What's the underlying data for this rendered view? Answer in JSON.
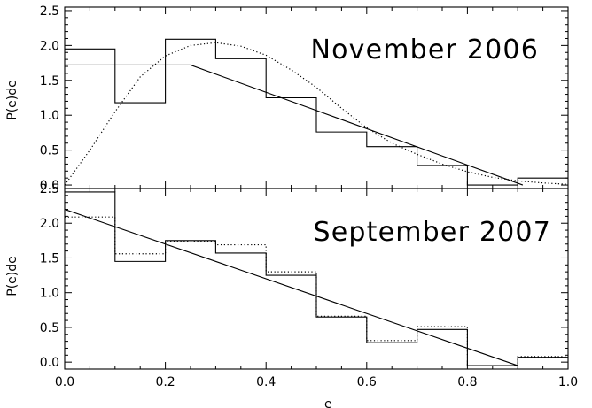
{
  "chart_data": [
    {
      "type": "line",
      "title": "November 2006",
      "xlabel": "",
      "ylabel": "P(e)de",
      "xlim": [
        0.0,
        1.0
      ],
      "ylim": [
        -0.05,
        2.55
      ],
      "xticks": [
        "0.0",
        "0.2",
        "0.4",
        "0.6",
        "0.8",
        "1.0"
      ],
      "yticks": [
        "0.0",
        "0.5",
        "1.0",
        "1.5",
        "2.0",
        "2.5"
      ],
      "grid": false,
      "series": [
        {
          "kind": "histogram",
          "style": "solid",
          "bin_edges": [
            0.0,
            0.1,
            0.2,
            0.3,
            0.4,
            0.5,
            0.6,
            0.7,
            0.8,
            0.9,
            1.0
          ],
          "values": [
            1.95,
            1.18,
            2.09,
            1.81,
            1.25,
            0.76,
            0.55,
            0.28,
            0.0,
            0.1
          ]
        },
        {
          "kind": "line",
          "style": "solid",
          "x": [
            0.0,
            0.25,
            0.91
          ],
          "y": [
            1.72,
            1.72,
            0.0
          ]
        },
        {
          "kind": "curve",
          "style": "dotted",
          "x": [
            0.0,
            0.05,
            0.1,
            0.15,
            0.2,
            0.25,
            0.3,
            0.35,
            0.4,
            0.45,
            0.5,
            0.55,
            0.6,
            0.65,
            0.7,
            0.75,
            0.8,
            0.85,
            0.9,
            0.95,
            1.0
          ],
          "y": [
            0.0,
            0.5,
            1.05,
            1.55,
            1.85,
            2.0,
            2.04,
            1.99,
            1.86,
            1.65,
            1.4,
            1.1,
            0.82,
            0.6,
            0.44,
            0.3,
            0.19,
            0.11,
            0.06,
            0.03,
            0.01
          ]
        }
      ]
    },
    {
      "type": "line",
      "title": "September 2007",
      "xlabel": "e",
      "ylabel": "P(e)de",
      "xlim": [
        0.0,
        1.0
      ],
      "ylim": [
        -0.1,
        2.5
      ],
      "xticks": [
        "0.0",
        "0.2",
        "0.4",
        "0.6",
        "0.8",
        "1.0"
      ],
      "yticks": [
        "0.0",
        "0.5",
        "1.0",
        "1.5",
        "2.0",
        "2.5"
      ],
      "grid": false,
      "series": [
        {
          "kind": "histogram",
          "style": "solid",
          "bin_edges": [
            0.0,
            0.1,
            0.2,
            0.3,
            0.4,
            0.5,
            0.6,
            0.7,
            0.8,
            0.9,
            1.0
          ],
          "values": [
            2.45,
            1.45,
            1.75,
            1.57,
            1.25,
            0.65,
            0.28,
            0.47,
            -0.05,
            0.07
          ]
        },
        {
          "kind": "histogram",
          "style": "dotted",
          "bin_edges": [
            0.0,
            0.1,
            0.2,
            0.3,
            0.4,
            0.5,
            0.6,
            0.7,
            0.8,
            0.9,
            1.0
          ],
          "values": [
            2.09,
            1.56,
            1.74,
            1.69,
            1.3,
            0.66,
            0.31,
            0.51,
            -0.05,
            0.08
          ]
        },
        {
          "kind": "line",
          "style": "solid",
          "x": [
            0.0,
            0.9
          ],
          "y": [
            2.2,
            -0.05
          ]
        }
      ]
    }
  ]
}
